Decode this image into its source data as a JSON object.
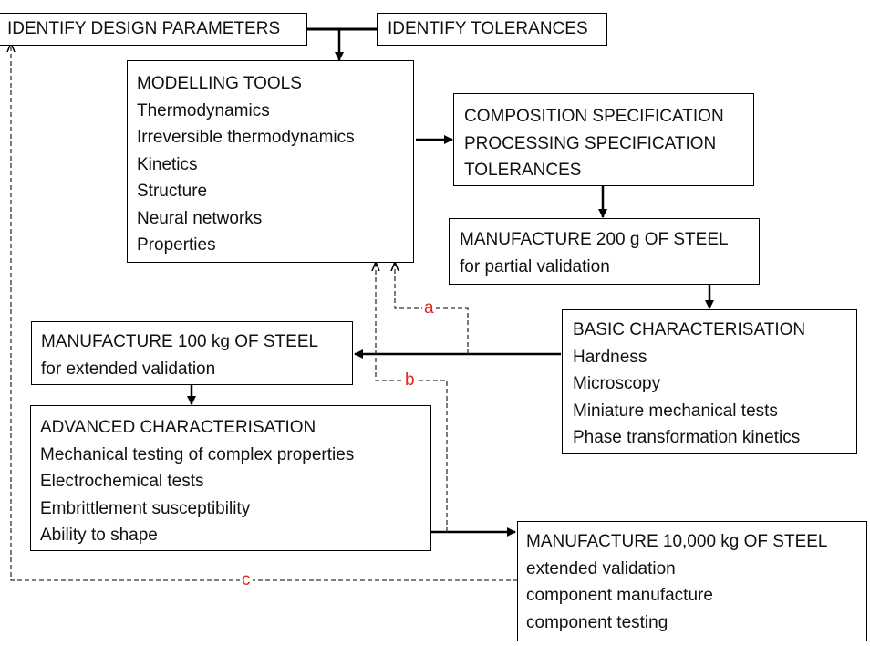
{
  "design_parameters": {
    "title": "IDENTIFY DESIGN PARAMETERS"
  },
  "tolerances": {
    "title": "IDENTIFY TOLERANCES"
  },
  "modelling_tools": {
    "title": "MODELLING TOOLS",
    "items": [
      "Thermodynamics",
      "Irreversible thermodynamics",
      "Kinetics",
      "Structure",
      "Neural networks",
      "Properties"
    ]
  },
  "specification": {
    "lines": [
      "COMPOSITION SPECIFICATION",
      "PROCESSING SPECIFICATION",
      "TOLERANCES"
    ]
  },
  "manufacture_200g": {
    "title": "MANUFACTURE 200 g OF STEEL",
    "subtitle": "for partial validation"
  },
  "basic_characterisation": {
    "title": "BASIC CHARACTERISATION",
    "items": [
      "Hardness",
      "Microscopy",
      "Miniature mechanical tests",
      "Phase transformation kinetics"
    ]
  },
  "manufacture_100kg": {
    "title": "MANUFACTURE 100 kg OF STEEL",
    "subtitle": "for extended validation"
  },
  "advanced_characterisation": {
    "title": "ADVANCED CHARACTERISATION",
    "items": [
      "Mechanical testing of complex properties",
      "Electrochemical tests",
      "Embrittlement susceptibility",
      "Ability to shape"
    ]
  },
  "manufacture_10000kg": {
    "title": "MANUFACTURE 10,000 kg OF STEEL",
    "items": [
      "extended validation",
      "component manufacture",
      "component testing"
    ]
  },
  "feedback_labels": {
    "a": "a",
    "b": "b",
    "c": "c"
  },
  "colors": {
    "feedback_label": "#e8261c",
    "line": "#000000",
    "box_border": "#000000"
  }
}
